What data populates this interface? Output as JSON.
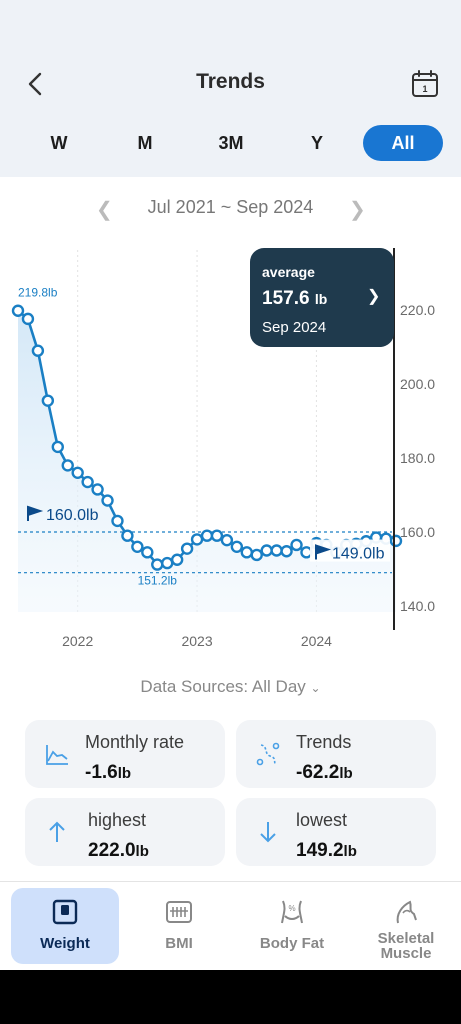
{
  "header": {
    "title": "Trends",
    "back_icon": "chevron-left-icon",
    "calendar_icon": "calendar-icon"
  },
  "periods": {
    "items": [
      "W",
      "M",
      "3M",
      "Y",
      "All"
    ],
    "selected": "All"
  },
  "date_range": {
    "label": "Jul 2021 ~ Sep 2024"
  },
  "chart_data": {
    "type": "line",
    "x_ticks": [
      "2022",
      "2023",
      "2024"
    ],
    "y_ticks": [
      "220.0",
      "200.0",
      "180.0",
      "160.0",
      "140.0"
    ],
    "ylim": [
      140,
      220
    ],
    "xlim": [
      "2021-07",
      "2024-09"
    ],
    "x": [
      "2021-07",
      "2021-08",
      "2021-09",
      "2021-10",
      "2021-11",
      "2021-12",
      "2022-01",
      "2022-02",
      "2022-03",
      "2022-04",
      "2022-05",
      "2022-06",
      "2022-07",
      "2022-08",
      "2022-09",
      "2022-10",
      "2022-11",
      "2022-12",
      "2023-01",
      "2023-02",
      "2023-03",
      "2023-04",
      "2023-05",
      "2023-06",
      "2023-07",
      "2023-08",
      "2023-09",
      "2023-10",
      "2023-11",
      "2023-12",
      "2024-01",
      "2024-02",
      "2024-03",
      "2024-04",
      "2024-05",
      "2024-06",
      "2024-07",
      "2024-08",
      "2024-09"
    ],
    "values": [
      219.8,
      217.6,
      209.0,
      195.5,
      183.0,
      178.0,
      176.0,
      173.5,
      171.5,
      168.5,
      163.0,
      159.0,
      156.0,
      154.5,
      151.2,
      151.6,
      152.5,
      155.5,
      158.0,
      159.0,
      159.0,
      157.8,
      156.0,
      154.5,
      153.8,
      155.0,
      155.0,
      154.8,
      156.5,
      154.5,
      157.0,
      156.5,
      154.5,
      156.5,
      156.8,
      157.5,
      158.5,
      158.2,
      157.6
    ],
    "annotations": {
      "start_label": "219.8lb",
      "min_label": "151.2lb",
      "goal_left": {
        "label": "160.0lb",
        "value": 160.0
      },
      "goal_right": {
        "label": "149.0lb",
        "value": 149.0
      }
    },
    "grid": true
  },
  "tooltip": {
    "label": "average",
    "value": "157.6",
    "unit": "lb",
    "date": "Sep 2024"
  },
  "data_sources": {
    "label": "Data Sources: All Day"
  },
  "stats": {
    "monthly_rate": {
      "label": "Monthly rate",
      "value": "-1.6",
      "unit": "lb"
    },
    "trends": {
      "label": "Trends",
      "value": "-62.2",
      "unit": "lb"
    },
    "highest": {
      "label": "highest",
      "value": "222.0",
      "unit": "lb"
    },
    "lowest": {
      "label": "lowest",
      "value": "149.2",
      "unit": "lb"
    }
  },
  "bottom_nav": {
    "items": [
      {
        "label": "Weight",
        "icon": "scale-icon",
        "active": true
      },
      {
        "label": "BMI",
        "icon": "bmi-icon",
        "active": false
      },
      {
        "label": "Body Fat",
        "icon": "body-fat-icon",
        "active": false
      },
      {
        "label": "Skeletal Muscle",
        "icon": "skeletal-muscle-icon",
        "active": false
      }
    ]
  },
  "colors": {
    "accent": "#1976d2",
    "line": "#1a7fc4",
    "tooltip_bg": "#1f3a4d",
    "nav_active": "#cfe0fb"
  }
}
